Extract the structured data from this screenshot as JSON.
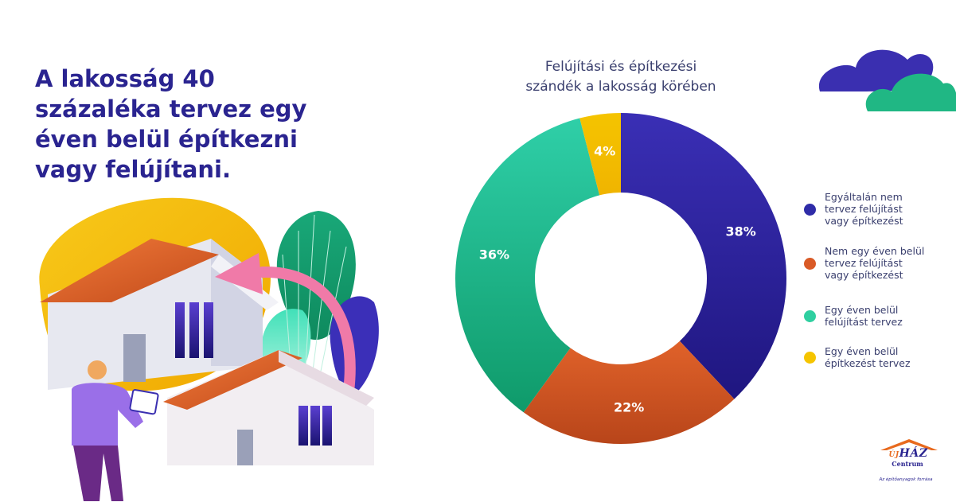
{
  "headline": {
    "lines": [
      "A lakosság 40",
      "százaléka tervez egy",
      "éven belül építkezni",
      "vagy felújítani."
    ]
  },
  "chart_title": {
    "line1": "Felújítási és építkezési",
    "line2": "szándék a lakosság körében"
  },
  "chart_data": {
    "type": "pie",
    "title": "Felújítási és építkezési szándék a lakosság körében",
    "donut": true,
    "unit": "%",
    "categories": [
      "Egyáltalán nem tervez felújítást vagy építkezést",
      "Nem egy éven belül tervez felújítást vagy építkezést",
      "Egy éven belül felújítást tervez",
      "Egy éven belül építkezést tervez"
    ],
    "values": [
      38,
      22,
      36,
      4
    ],
    "data_labels": [
      "38%",
      "22%",
      "36%",
      "4%"
    ],
    "colors": [
      "#3a2fb5",
      "#e0622a",
      "#2fcfa8",
      "#f5c400"
    ],
    "gradient_dark": [
      "#1f1680",
      "#b8451a",
      "#0f9a6a",
      "#f0b400"
    ],
    "legend_position": "right"
  },
  "legend": [
    {
      "lines": [
        "Egyáltalán nem",
        "tervez felújítást",
        "vagy építkezést"
      ],
      "color": "#2f2ca8"
    },
    {
      "lines": [
        "Nem egy éven belül",
        "tervez felújítást",
        "vagy építkezést"
      ],
      "color": "#d95a26"
    },
    {
      "lines": [
        "Egy éven belül",
        "felújítást tervez"
      ],
      "color": "#2fcfa0"
    },
    {
      "lines": [
        "Egy éven belül",
        "építkezést tervez"
      ],
      "color": "#f5c400"
    }
  ],
  "logo": {
    "prefix": "ÚJ",
    "name": "HÁZ",
    "sub": "Centrum",
    "tagline": "Az építőanyagok forrása"
  },
  "colors": {
    "headline": "#2a2490",
    "text": "#3a3f6e",
    "cloud_blue": "#3a2fb0",
    "cloud_green": "#20b784"
  }
}
